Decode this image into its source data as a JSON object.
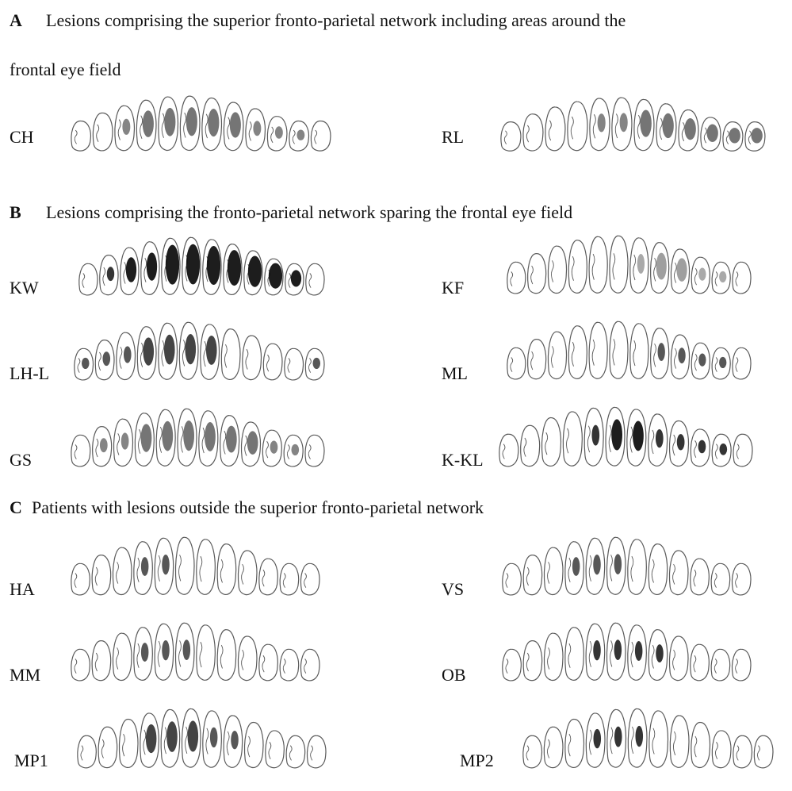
{
  "sections": [
    {
      "letter": "A",
      "title": "Lesions comprising the superior fronto-parietal network including areas around the",
      "title_continuation": "frontal eye field",
      "patients": [
        {
          "label": "CH",
          "lesions": [
            0,
            0,
            1,
            2,
            2,
            2,
            2,
            2,
            1,
            1,
            1,
            0
          ],
          "tone": "gray"
        },
        {
          "label": "RL",
          "lesions": [
            0,
            0,
            0,
            0,
            1,
            1,
            2,
            2,
            2,
            2,
            2,
            2
          ],
          "tone": "gray"
        }
      ]
    },
    {
      "letter": "B",
      "title": "Lesions comprising the fronto-parietal network sparing the frontal eye field",
      "patients": [
        {
          "label": "KW",
          "lesions": [
            0,
            1,
            2,
            2,
            3,
            3,
            3,
            3,
            3,
            3,
            2,
            0
          ],
          "tone": "black"
        },
        {
          "label": "KF",
          "lesions": [
            0,
            0,
            0,
            0,
            0,
            0,
            1,
            2,
            2,
            1,
            1,
            0
          ],
          "tone": "lightgray"
        },
        {
          "label": "LH-L",
          "lesions": [
            1,
            1,
            1,
            2,
            2,
            2,
            2,
            0,
            0,
            0,
            0,
            1
          ],
          "tone": "dark"
        },
        {
          "label": "ML",
          "lesions": [
            0,
            0,
            0,
            0,
            0,
            0,
            0,
            1,
            1,
            1,
            1,
            0
          ],
          "tone": "dark"
        },
        {
          "label": "GS",
          "lesions": [
            0,
            1,
            1,
            2,
            2,
            2,
            2,
            2,
            2,
            1,
            1,
            0
          ],
          "tone": "gray"
        },
        {
          "label": "K-KL",
          "lesions": [
            0,
            0,
            0,
            0,
            1,
            2,
            2,
            1,
            1,
            1,
            1,
            0
          ],
          "tone": "black"
        }
      ]
    },
    {
      "letter": "C",
      "title": "Patients with lesions outside the superior fronto-parietal network",
      "patients": [
        {
          "label": "HA",
          "lesions": [
            0,
            0,
            0,
            1,
            1,
            0,
            0,
            0,
            0,
            0,
            0,
            0
          ],
          "tone": "dark"
        },
        {
          "label": "VS",
          "lesions": [
            0,
            0,
            0,
            1,
            1,
            1,
            0,
            0,
            0,
            0,
            0,
            0
          ],
          "tone": "dark"
        },
        {
          "label": "MM",
          "lesions": [
            0,
            0,
            0,
            1,
            1,
            1,
            0,
            0,
            0,
            0,
            0,
            0
          ],
          "tone": "dark"
        },
        {
          "label": "OB",
          "lesions": [
            0,
            0,
            0,
            0,
            1,
            1,
            1,
            1,
            0,
            0,
            0,
            0
          ],
          "tone": "black"
        },
        {
          "label": "MP1",
          "lesions": [
            0,
            0,
            0,
            2,
            2,
            2,
            1,
            1,
            0,
            0,
            0,
            0
          ],
          "tone": "dark"
        },
        {
          "label": "MP2",
          "lesions": [
            0,
            0,
            0,
            1,
            1,
            1,
            0,
            0,
            0,
            0,
            0,
            0
          ],
          "tone": "black"
        }
      ]
    }
  ],
  "colors": {
    "outline": "#5a5a5a",
    "black": "#111111",
    "dark": "#3a3a3a",
    "gray": "#6e6e6e",
    "lightgray": "#9a9a9a"
  }
}
